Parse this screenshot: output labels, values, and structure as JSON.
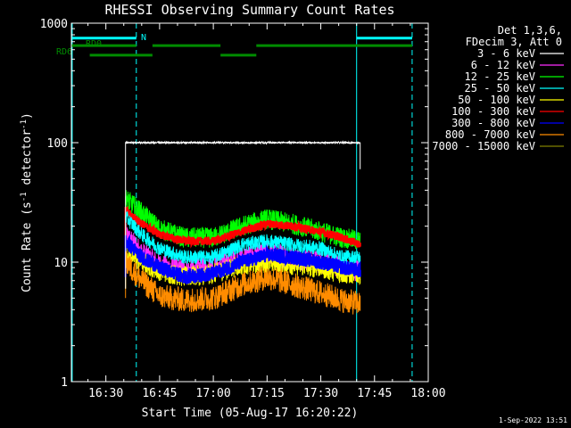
{
  "chart_data": {
    "type": "line",
    "title": "RHESSI Observing Summary Count Rates",
    "xlabel": "Start Time (05-Aug-17 16:20:22)",
    "ylabel": "Count Rate (s",
    "ylabel_sup1": "-1",
    "ylabel_mid": " detector",
    "ylabel_sup2": "-1",
    "ylabel_end": ")",
    "xlim_minutes": [
      980.37,
      1080
    ],
    "ylim": [
      1,
      1000
    ],
    "yscale": "log",
    "x_ticks": [
      {
        "minutes": 990,
        "label": "16:30"
      },
      {
        "minutes": 1005,
        "label": "16:45"
      },
      {
        "minutes": 1020,
        "label": "17:00"
      },
      {
        "minutes": 1035,
        "label": "17:15"
      },
      {
        "minutes": 1050,
        "label": "17:30"
      },
      {
        "minutes": 1065,
        "label": "17:45"
      },
      {
        "minutes": 1080,
        "label": "18:00"
      }
    ],
    "y_ticks": [
      {
        "value": 1,
        "label": "1"
      },
      {
        "value": 10,
        "label": "10"
      },
      {
        "value": 100,
        "label": "100"
      },
      {
        "value": 1000,
        "label": "1000"
      }
    ],
    "legend_header": [
      "Det 1,3,6,",
      "FDecim 3, Att 0"
    ],
    "series": [
      {
        "name": "3 - 6 keV",
        "color": "#ffffff",
        "start": 995.5,
        "end": 1061.0,
        "points": [
          [
            995.5,
            100
          ],
          [
            1061,
            100
          ]
        ]
      },
      {
        "name": "6 - 12 keV",
        "color": "#ff2cff",
        "start": 995.5,
        "end": 1061.0,
        "points": [
          [
            995.5,
            17
          ],
          [
            1000,
            12
          ],
          [
            1005,
            9.5
          ],
          [
            1012,
            8.5
          ],
          [
            1020,
            9
          ],
          [
            1028,
            11
          ],
          [
            1035,
            12
          ],
          [
            1042,
            11
          ],
          [
            1050,
            10
          ],
          [
            1056,
            9
          ],
          [
            1061,
            8.5
          ]
        ]
      },
      {
        "name": "12 - 25 keV",
        "color": "#00ff00",
        "start": 995.5,
        "end": 1061.0,
        "points": [
          [
            995.5,
            34
          ],
          [
            1000,
            26
          ],
          [
            1005,
            19
          ],
          [
            1012,
            16
          ],
          [
            1020,
            16
          ],
          [
            1028,
            20
          ],
          [
            1035,
            23
          ],
          [
            1042,
            21
          ],
          [
            1050,
            18
          ],
          [
            1056,
            16
          ],
          [
            1061,
            15
          ]
        ]
      },
      {
        "name": "25 - 50 keV",
        "color": "#00ffff",
        "start": 995.5,
        "end": 1061.0,
        "points": [
          [
            995.5,
            24
          ],
          [
            1000,
            17
          ],
          [
            1005,
            13
          ],
          [
            1012,
            11
          ],
          [
            1020,
            11
          ],
          [
            1028,
            14
          ],
          [
            1035,
            15
          ],
          [
            1042,
            14
          ],
          [
            1050,
            13
          ],
          [
            1056,
            11
          ],
          [
            1061,
            11
          ]
        ]
      },
      {
        "name": "50 - 100 keV",
        "color": "#ffff00",
        "start": 995.5,
        "end": 1061.0,
        "points": [
          [
            995.5,
            12
          ],
          [
            1000,
            10
          ],
          [
            1005,
            8.5
          ],
          [
            1012,
            7.5
          ],
          [
            1020,
            8
          ],
          [
            1028,
            9.5
          ],
          [
            1035,
            10
          ],
          [
            1042,
            9.5
          ],
          [
            1050,
            9
          ],
          [
            1056,
            8
          ],
          [
            1061,
            8
          ]
        ]
      },
      {
        "name": "100 - 300 keV",
        "color": "#ff0000",
        "start": 995.5,
        "end": 1061.0,
        "points": [
          [
            995.5,
            27
          ],
          [
            1000,
            21
          ],
          [
            1005,
            17
          ],
          [
            1012,
            15
          ],
          [
            1020,
            15
          ],
          [
            1028,
            18
          ],
          [
            1035,
            21
          ],
          [
            1042,
            20
          ],
          [
            1050,
            18
          ],
          [
            1056,
            16
          ],
          [
            1061,
            14
          ]
        ]
      },
      {
        "name": "300 - 800 keV",
        "color": "#0000ff",
        "start": 995.5,
        "end": 1061.0,
        "points": [
          [
            995.5,
            15
          ],
          [
            1000,
            11
          ],
          [
            1005,
            9
          ],
          [
            1012,
            7.5
          ],
          [
            1020,
            8
          ],
          [
            1028,
            10
          ],
          [
            1035,
            11.5
          ],
          [
            1042,
            11
          ],
          [
            1050,
            10
          ],
          [
            1056,
            9
          ],
          [
            1061,
            8.5
          ]
        ]
      },
      {
        "name": "800 - 7000 keV",
        "color": "#ff8c00",
        "start": 995.5,
        "end": 1061.0,
        "points": [
          [
            995.5,
            10
          ],
          [
            1000,
            7
          ],
          [
            1005,
            5.2
          ],
          [
            1012,
            4.8
          ],
          [
            1020,
            5
          ],
          [
            1028,
            6.5
          ],
          [
            1035,
            7.5
          ],
          [
            1042,
            6.5
          ],
          [
            1050,
            5.5
          ],
          [
            1056,
            4.8
          ],
          [
            1061,
            4.5
          ]
        ]
      },
      {
        "name": "7000 - 15000 keV",
        "color": "#808000",
        "start": 995.5,
        "end": 1061.0,
        "points": []
      }
    ],
    "flags": [
      {
        "label": "N",
        "color": "#00ffff",
        "value": 750,
        "segments": [
          [
            980.37,
            998.5
          ],
          [
            1060,
            1075.5
          ]
        ]
      },
      {
        "label": "RD0",
        "color": "#008c00",
        "value": 650,
        "segments": [
          [
            980.37,
            998.5
          ],
          [
            1003,
            1022
          ],
          [
            1032,
            1075.5
          ]
        ]
      },
      {
        "label": "RD6",
        "color": "#008c00",
        "value": 540,
        "segments": [
          [
            985.5,
            1003
          ],
          [
            1022,
            1032
          ]
        ]
      }
    ],
    "vlines": [
      {
        "minutes": 980.6,
        "color": "#00ffff",
        "style": "solid"
      },
      {
        "minutes": 998.5,
        "color": "#00ffff",
        "style": "dashed"
      },
      {
        "minutes": 1060.0,
        "color": "#00ffff",
        "style": "solid"
      },
      {
        "minutes": 1075.5,
        "color": "#00ffff",
        "style": "dashed"
      }
    ]
  },
  "footer_date": "1-Sep-2022 13:51"
}
